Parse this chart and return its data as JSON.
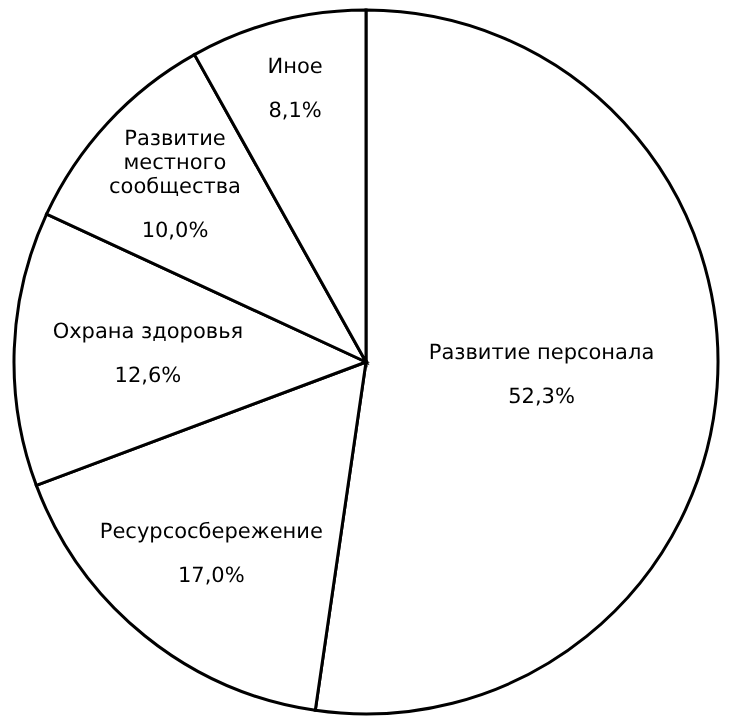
{
  "chart_data": {
    "type": "pie",
    "categories": [
      "Развитие персонала",
      "Ресурсосбережение",
      "Охрана здоровья",
      "Развитие местного сообщества",
      "Иное"
    ],
    "values": [
      52.3,
      17.0,
      12.6,
      10.0,
      8.1
    ],
    "colors": [
      "#ffffff",
      "#ffffff",
      "#ffffff",
      "#ffffff",
      "#ffffff"
    ],
    "value_labels": [
      "52,3%",
      "17,0%",
      "12,6%",
      "10,0%",
      "8,1%"
    ]
  }
}
